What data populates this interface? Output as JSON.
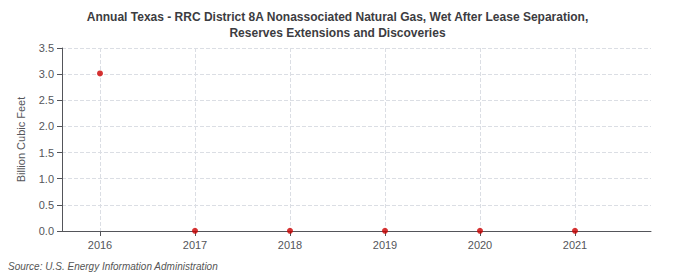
{
  "chart_data": {
    "type": "scatter",
    "title": "Annual Texas - RRC District 8A Nonassociated Natural Gas, Wet After Lease Separation,\nReserves Extensions and Discoveries",
    "ylabel": "Billion Cubic Feet",
    "annotation": "Source: U.S. Energy Information Administration",
    "x": [
      2016,
      2017,
      2018,
      2019,
      2020,
      2021
    ],
    "values": [
      3.014,
      0.003,
      0.003,
      0.003,
      0.003,
      0.003
    ],
    "color": "#cc0000",
    "marker": "circle",
    "xlim": [
      2015.6,
      2021.8
    ],
    "xticks": [
      2016,
      2017,
      2018,
      2019,
      2020,
      2021
    ],
    "ylim": [
      0.0,
      3.5
    ],
    "yticks": [
      {
        "value": 0.0,
        "label": "0.0"
      },
      0.5,
      {
        "value": 1.0,
        "label": "1.0"
      },
      1.5,
      {
        "value": 2.0,
        "label": "2.0"
      },
      2.5,
      {
        "value": 3.0,
        "label": "3.0"
      },
      3.5
    ],
    "grid": true
  }
}
